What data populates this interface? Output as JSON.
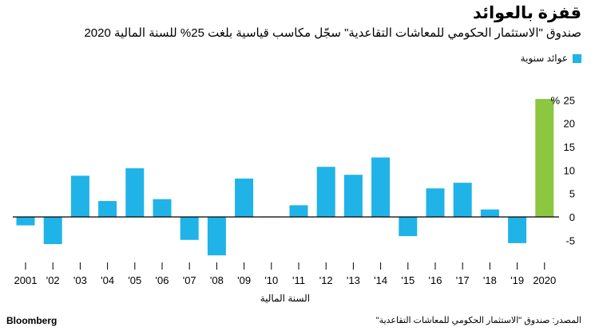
{
  "title": "قفزة بالعوائد",
  "subtitle": "صندوق \"الاستثمار الحكومي للمعاشات التقاعدية\" سجّل مكاسب قياسية بلغت 25% للسنة المالية 2020",
  "source": "المصدر: صندوق \"الاستثمار الحكومي للمعاشات التقاعدية\"",
  "brand": "Bloomberg",
  "chart_data": {
    "type": "bar",
    "xlabel": "السنة المالية",
    "ylabel": "",
    "y_unit_label": "%",
    "legend": [
      {
        "name": "عوائد سنوية",
        "color": "#1fb3e8"
      }
    ],
    "legend_position": "top-right",
    "grid": false,
    "ylim": [
      -8,
      27
    ],
    "y_ticks": [
      {
        "value": 25,
        "label": "25"
      },
      {
        "value": 20,
        "label": "20"
      },
      {
        "value": 15,
        "label": "15"
      },
      {
        "value": 10,
        "label": "10"
      },
      {
        "value": 5,
        "label": "5"
      },
      {
        "value": 0,
        "label": "0"
      },
      {
        "value": -5,
        "label": "-5"
      }
    ],
    "categories": [
      "2001",
      "'02",
      "'03",
      "'04",
      "'05",
      "'06",
      "'07",
      "'08",
      "'09",
      "'10",
      "'11",
      "'12",
      "'13",
      "'14",
      "'15",
      "'16",
      "'17",
      "'18",
      "'19",
      "2020"
    ],
    "values": [
      -1.8,
      -5.8,
      8.8,
      3.4,
      10.4,
      3.8,
      -4.9,
      -8.2,
      8.2,
      0.1,
      2.5,
      10.7,
      9.0,
      12.7,
      -4.1,
      6.1,
      7.3,
      1.6,
      -5.6,
      25.2
    ],
    "colors": {
      "default": "#1fb3e8",
      "highlight": "#8dc63f",
      "axis": "#000000"
    },
    "highlight_index": 19
  }
}
